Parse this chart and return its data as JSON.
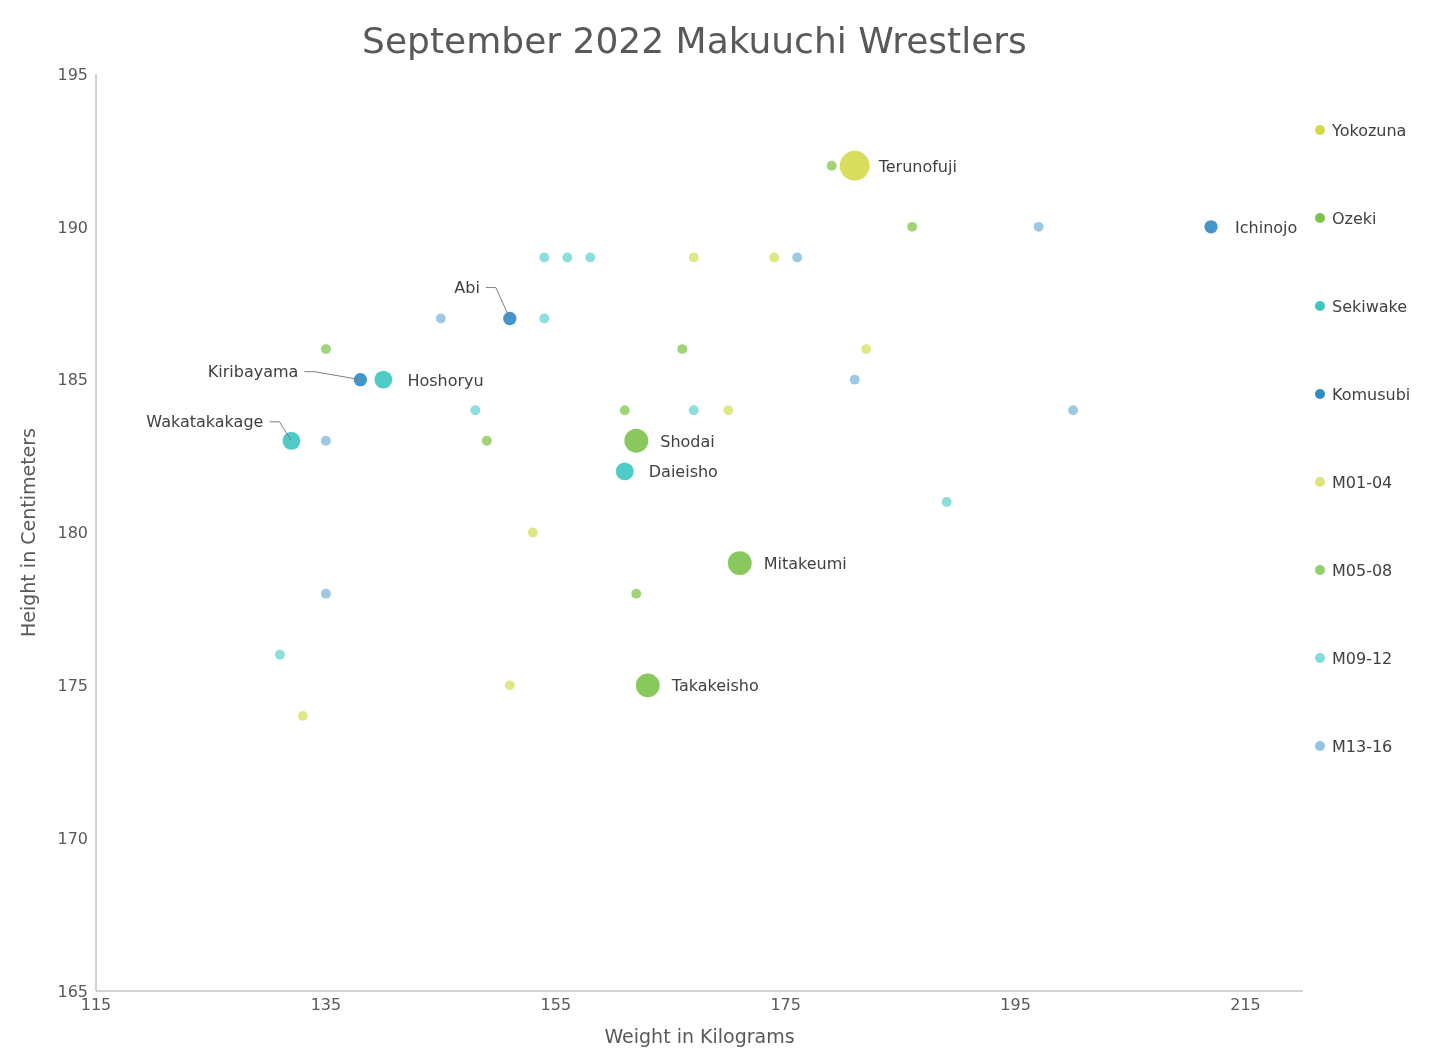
{
  "chart_data": {
    "type": "bubble",
    "title": "September 2022 Makuuchi Wrestlers",
    "xlabel": "Weight in Kilograms",
    "ylabel": "Height in Centimeters",
    "xlim": [
      115,
      220
    ],
    "xticks": [
      115,
      135,
      155,
      175,
      195,
      215
    ],
    "ylim": [
      165,
      195
    ],
    "yticks": [
      165,
      170,
      175,
      180,
      185,
      190,
      195
    ],
    "grid": false,
    "legend": "right",
    "marker": "circle",
    "series": [
      {
        "name": "Yokozuna",
        "color": "#d4d94a",
        "x": [
          181
        ],
        "values": [
          192
        ],
        "sizes": [
          1
        ]
      },
      {
        "name": "Ozeki",
        "color": "#7cc24a",
        "x": [
          162,
          171,
          163
        ],
        "values": [
          183,
          179,
          175
        ],
        "sizes": [
          0.64,
          0.64,
          0.64
        ]
      },
      {
        "name": "Sekiwake",
        "color": "#3cc6c0",
        "x": [
          140,
          132,
          161
        ],
        "values": [
          185,
          183,
          182
        ],
        "sizes": [
          0.36,
          0.36,
          0.36
        ]
      },
      {
        "name": "Komusubi",
        "color": "#2e8bc6",
        "x": [
          151,
          138,
          212
        ],
        "values": [
          187,
          185,
          190
        ],
        "sizes": [
          0.2,
          0.2,
          0.2
        ]
      },
      {
        "name": "M01-04",
        "color": "#dde47a",
        "x": [
          167,
          174,
          182,
          170,
          153,
          151,
          133
        ],
        "values": [
          189,
          189,
          186,
          184,
          180,
          175,
          174
        ],
        "sizes": [
          0.11,
          0.11,
          0.11,
          0.11,
          0.11,
          0.11,
          0.11
        ]
      },
      {
        "name": "M05-08",
        "color": "#95cf6a",
        "x": [
          179,
          186,
          135,
          166,
          161,
          149,
          162
        ],
        "values": [
          192,
          190,
          186,
          186,
          184,
          183,
          178
        ],
        "sizes": [
          0.11,
          0.11,
          0.11,
          0.11,
          0.11,
          0.11,
          0.11
        ]
      },
      {
        "name": "M09-12",
        "color": "#7fdcd6",
        "x": [
          154,
          156,
          158,
          154,
          148,
          167,
          189,
          131
        ],
        "values": [
          189,
          189,
          189,
          187,
          184,
          184,
          181,
          176
        ],
        "sizes": [
          0.11,
          0.11,
          0.11,
          0.11,
          0.11,
          0.11,
          0.11,
          0.11
        ]
      },
      {
        "name": "M13-16",
        "color": "#93c3e2",
        "x": [
          176,
          197,
          145,
          181,
          200,
          135,
          135
        ],
        "values": [
          189,
          190,
          187,
          185,
          184,
          183,
          178
        ],
        "sizes": [
          0.11,
          0.11,
          0.11,
          0.11,
          0.11,
          0.11,
          0.11
        ]
      }
    ],
    "annotations": [
      {
        "text": "Terunofuji",
        "x": 181,
        "y": 192
      },
      {
        "text": "Ichinojo",
        "x": 212,
        "y": 190
      },
      {
        "text": "Abi",
        "x": 151,
        "y": 187
      },
      {
        "text": "Kiribayama",
        "x": 138,
        "y": 185
      },
      {
        "text": "Hoshoryu",
        "x": 140,
        "y": 185
      },
      {
        "text": "Wakatakakage",
        "x": 132,
        "y": 183
      },
      {
        "text": "Shodai",
        "x": 162,
        "y": 183
      },
      {
        "text": "Daieisho",
        "x": 161,
        "y": 182
      },
      {
        "text": "Mitakeumi",
        "x": 171,
        "y": 179
      },
      {
        "text": "Takakeisho",
        "x": 163,
        "y": 175
      }
    ]
  }
}
